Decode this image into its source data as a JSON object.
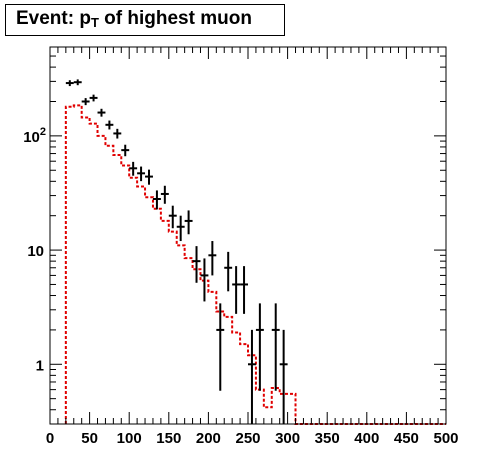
{
  "title": {
    "main": "Event: p",
    "sub": "T",
    "rest": " of highest muon"
  },
  "colors": {
    "data": "#000000",
    "mc": "#e00000",
    "frame": "#000000"
  },
  "chart_data": {
    "type": "line",
    "title": "Event: p_T of highest muon",
    "xlabel": "",
    "ylabel": "",
    "xlim": [
      0,
      500
    ],
    "ylim": [
      0.3,
      600
    ],
    "yscale": "log",
    "grid": false,
    "bin_width": 10,
    "x_ticks": [
      0,
      50,
      100,
      150,
      200,
      250,
      300,
      350,
      400,
      450,
      500
    ],
    "y_ticks": [
      {
        "value": 1,
        "label": "1"
      },
      {
        "value": 10,
        "label": "10"
      },
      {
        "value": 100,
        "label": "10",
        "exp": "2"
      }
    ],
    "series": [
      {
        "kind": "points-with-errors",
        "points": [
          {
            "x": 25,
            "y": 290
          },
          {
            "x": 35,
            "y": 295
          },
          {
            "x": 45,
            "y": 200
          },
          {
            "x": 55,
            "y": 215
          },
          {
            "x": 65,
            "y": 160
          },
          {
            "x": 75,
            "y": 125
          },
          {
            "x": 85,
            "y": 105
          },
          {
            "x": 95,
            "y": 75
          },
          {
            "x": 105,
            "y": 52
          },
          {
            "x": 115,
            "y": 47
          },
          {
            "x": 125,
            "y": 44
          },
          {
            "x": 135,
            "y": 28
          },
          {
            "x": 145,
            "y": 31
          },
          {
            "x": 155,
            "y": 20
          },
          {
            "x": 165,
            "y": 16
          },
          {
            "x": 175,
            "y": 18
          },
          {
            "x": 185,
            "y": 8
          },
          {
            "x": 195,
            "y": 6
          },
          {
            "x": 205,
            "y": 9
          },
          {
            "x": 215,
            "y": 2
          },
          {
            "x": 225,
            "y": 7
          },
          {
            "x": 235,
            "y": 5
          },
          {
            "x": 245,
            "y": 5
          },
          {
            "x": 255,
            "y": 1
          },
          {
            "x": 265,
            "y": 2
          },
          {
            "x": 285,
            "y": 2
          },
          {
            "x": 295,
            "y": 1
          }
        ]
      },
      {
        "kind": "step-histogram",
        "edges_start": 20,
        "values": [
          180,
          185,
          145,
          128,
          100,
          82,
          68,
          55,
          43,
          36,
          29,
          23,
          18,
          14.5,
          11,
          8.5,
          6.8,
          5.4,
          4.3,
          2.9,
          2.6,
          1.9,
          1.5,
          1.2,
          0.6,
          0.42,
          0.62,
          0.55,
          0.55
        ]
      }
    ]
  }
}
